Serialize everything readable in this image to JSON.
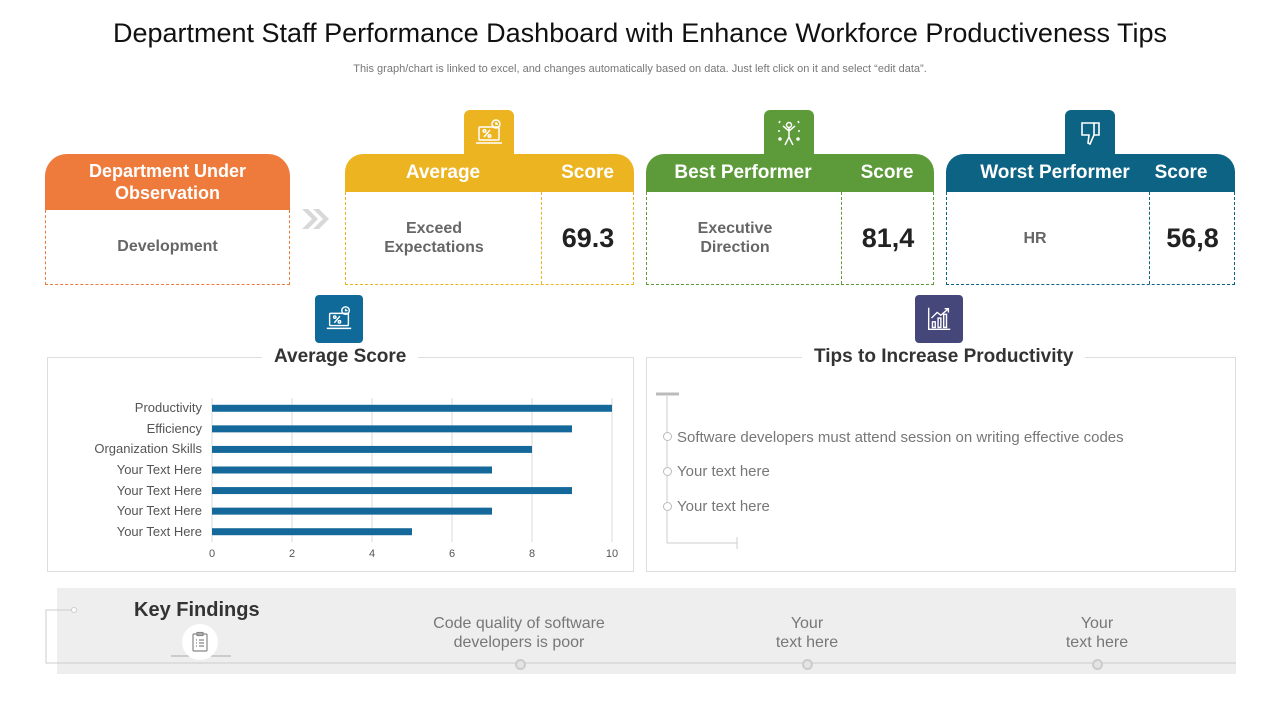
{
  "header": {
    "title": "Department Staff Performance Dashboard with Enhance Workforce Productiveness Tips",
    "subtitle": "This graph/chart is linked to excel,  and changes automatically based on data. Just left click on it and select “edit data”."
  },
  "department_card": {
    "heading": "Department Under Observation",
    "value": "Development",
    "color": "#ee7a3b"
  },
  "kpi_cards": [
    {
      "title": "Average",
      "score_label": "Score",
      "label_line1": "Exceed",
      "label_line2": "Expectations",
      "score": "69.3",
      "color": "#ecb421",
      "icon": "laptop-percent-icon"
    },
    {
      "title": "Best Performer",
      "score_label": "Score",
      "label_line1": "Executive",
      "label_line2": "Direction",
      "score": "81,4",
      "color": "#5d9b3a",
      "icon": "celebrating-person-icon"
    },
    {
      "title": "Worst Performer",
      "score_label": "Score",
      "label_line1": "HR",
      "label_line2": "",
      "score": "56,8",
      "color": "#0c6384",
      "icon": "thumbs-down-icon"
    }
  ],
  "average_score_panel": {
    "title": "Average Score",
    "icon": "laptop-percent-icon",
    "icon_color": "#0f6a99"
  },
  "chart_data": {
    "type": "bar",
    "orientation": "horizontal",
    "categories": [
      "Productivity",
      "Efficiency",
      "Organization Skills",
      "Your Text Here",
      "Your Text Here",
      "Your Text Here",
      "Your Text Here"
    ],
    "values": [
      10,
      9,
      8,
      7,
      9,
      7,
      5
    ],
    "xlim": [
      0,
      10
    ],
    "xticks": [
      "0",
      "2",
      "4",
      "6",
      "8",
      "10"
    ],
    "bar_color": "#15699a",
    "grid": true
  },
  "tips_panel": {
    "title": "Tips to Increase Productivity",
    "icon": "growth-chart-icon",
    "icon_color": "#45477a",
    "items": [
      "Software developers must attend session on writing effective codes",
      "Your text here",
      "Your text here"
    ]
  },
  "key_findings": {
    "title": "Key Findings",
    "icon": "clipboard-list-icon",
    "items": [
      {
        "line1": "Code quality  of software",
        "line2": "developers is poor"
      },
      {
        "line1": "Your",
        "line2": "text here"
      },
      {
        "line1": "Your",
        "line2": "text here"
      }
    ]
  }
}
